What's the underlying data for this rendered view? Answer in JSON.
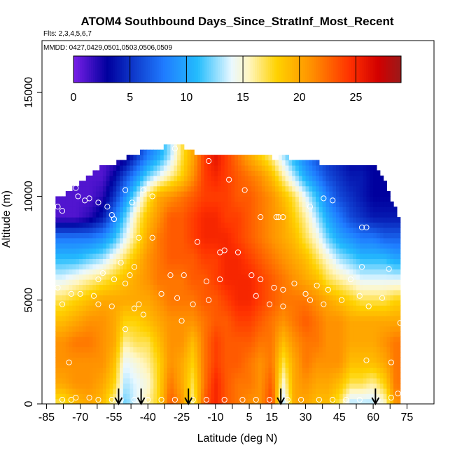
{
  "chart_data": {
    "type": "heatmap",
    "title": "ATOM4 Southbound Days_Since_StratInf_Most_Recent",
    "subtitle": "Flts: 2,3,4,5,6,7",
    "annotation": "MMDD: 0427,0429,0501,0503,0506,0509",
    "xlabel": "Latitude (deg N)",
    "ylabel": "Altitude (m)",
    "xlim": [
      -87,
      87
    ],
    "ylim": [
      0,
      17500
    ],
    "x_ticks": [
      -85,
      -70,
      -55,
      -40,
      -25,
      -10,
      5,
      15,
      30,
      45,
      60,
      75
    ],
    "x_tick_labels": [
      "-85",
      "-70",
      "-55",
      "-40",
      "-25",
      "-10",
      "5",
      "15",
      "30",
      "45",
      "60",
      "75"
    ],
    "y_ticks": [
      0,
      5000,
      10000,
      15000
    ],
    "y_tick_labels": [
      "0",
      "5000",
      "10000",
      "15000"
    ],
    "colorbar": {
      "range": [
        0,
        29
      ],
      "ticks": [
        0,
        5,
        10,
        15,
        20,
        25
      ],
      "tick_labels": [
        "0",
        "5",
        "10",
        "15",
        "20",
        "25"
      ],
      "colors": [
        "#7a1fe8",
        "#00009e",
        "#1f7bff",
        "#24bdfd",
        "#eaf8ff",
        "#fff6c2",
        "#ffd200",
        "#ff9200",
        "#ff3000",
        "#d20000",
        "#9a1a1a"
      ],
      "color_stops": [
        0,
        3,
        8,
        11,
        14,
        15.5,
        18,
        21,
        24.5,
        27,
        29
      ]
    },
    "lat_columns": [
      -78,
      -72,
      -66,
      -60,
      -55,
      -50,
      -45,
      -40,
      -35,
      -30,
      -25,
      -20,
      -15,
      -10,
      -5,
      0,
      5,
      10,
      15,
      20,
      25,
      30,
      35,
      40,
      45,
      50,
      55,
      60,
      65,
      70
    ],
    "alt_levels": [
      0,
      1000,
      2000,
      3000,
      4000,
      5000,
      6000,
      7000,
      8000,
      9000,
      10000,
      11000,
      12000
    ],
    "column_top_altitude": [
      10000,
      10500,
      11000,
      11500,
      11500,
      11800,
      12000,
      12200,
      12200,
      12400,
      12300,
      12000,
      11800,
      12000,
      12000,
      12000,
      12000,
      11900,
      11700,
      11800,
      11600,
      11600,
      11500,
      11500,
      11500,
      11500,
      11300,
      11300,
      10500,
      9000
    ],
    "days_grid": [
      [
        17,
        19,
        20,
        19,
        16,
        12,
        14,
        16,
        18,
        23,
        21,
        16,
        23,
        25,
        23,
        22,
        21,
        21,
        24,
        13,
        20,
        20,
        19,
        19,
        17,
        13,
        13,
        13,
        15,
        21
      ],
      [
        20,
        21,
        21,
        20,
        18,
        13,
        14,
        15,
        18,
        22,
        20,
        17,
        22,
        25,
        23,
        22,
        22,
        21,
        23,
        15,
        20,
        21,
        20,
        20,
        19,
        17,
        17,
        16,
        18,
        22
      ],
      [
        21,
        21,
        21,
        21,
        19,
        14,
        15,
        16,
        18,
        21,
        20,
        18,
        22,
        24,
        23,
        23,
        22,
        21,
        22,
        17,
        20,
        22,
        21,
        21,
        21,
        19,
        19,
        19,
        20,
        22
      ],
      [
        21,
        22,
        22,
        21,
        20,
        16,
        17,
        17,
        19,
        21,
        21,
        19,
        22,
        24,
        23,
        23,
        23,
        22,
        22,
        19,
        21,
        22,
        22,
        21,
        21,
        20,
        20,
        20,
        21,
        22
      ],
      [
        19,
        20,
        21,
        21,
        20,
        18,
        18,
        19,
        20,
        21,
        21,
        21,
        22,
        23,
        23,
        24,
        24,
        23,
        22,
        21,
        22,
        23,
        22,
        21,
        21,
        20,
        20,
        20,
        20,
        20
      ],
      [
        17,
        18,
        19,
        20,
        20,
        20,
        20,
        20,
        21,
        22,
        22,
        22,
        23,
        23,
        24,
        25,
        25,
        24,
        23,
        22,
        22,
        22,
        21,
        20,
        19,
        18,
        17,
        17,
        17,
        18
      ],
      [
        14,
        15,
        16,
        17,
        18,
        19,
        20,
        21,
        22,
        22,
        22,
        23,
        23,
        24,
        25,
        25,
        25,
        24,
        23,
        22,
        21,
        20,
        19,
        17,
        16,
        15,
        14,
        14,
        14,
        14
      ],
      [
        11,
        11,
        12,
        13,
        15,
        17,
        19,
        21,
        22,
        23,
        23,
        23,
        24,
        24,
        25,
        25,
        24,
        23,
        22,
        21,
        20,
        19,
        17,
        15,
        13,
        12,
        11,
        11,
        11,
        10
      ],
      [
        8,
        8,
        8,
        9,
        11,
        14,
        17,
        20,
        22,
        23,
        23,
        24,
        25,
        25,
        25,
        24,
        23,
        22,
        21,
        20,
        19,
        17,
        15,
        12,
        10,
        9,
        8,
        8,
        7,
        7
      ],
      [
        1,
        1,
        2,
        4,
        8,
        12,
        16,
        19,
        21,
        23,
        23,
        24,
        25,
        25,
        24,
        24,
        23,
        22,
        21,
        20,
        18,
        16,
        13,
        10,
        8,
        6,
        5,
        4,
        4,
        4
      ],
      [
        1,
        1,
        1,
        2,
        5,
        9,
        13,
        17,
        20,
        21,
        22,
        23,
        24,
        24,
        24,
        23,
        23,
        22,
        21,
        19,
        17,
        14,
        11,
        8,
        6,
        5,
        4,
        3,
        3,
        3
      ],
      [
        1,
        1,
        1,
        1,
        3,
        6,
        9,
        12,
        14,
        16,
        18,
        21,
        24,
        25,
        24,
        23,
        22,
        21,
        19,
        16,
        13,
        10,
        8,
        6,
        5,
        4,
        4,
        3,
        3,
        3
      ],
      [
        1,
        1,
        1,
        1,
        1,
        2,
        5,
        8,
        10,
        13,
        17,
        20,
        24,
        26,
        24,
        22,
        20,
        18,
        16,
        13,
        10,
        8,
        6,
        5,
        4,
        3,
        3,
        3,
        3,
        3
      ]
    ],
    "points": [
      {
        "lat": -82,
        "alt": 9500
      },
      {
        "lat": -80,
        "alt": 9500
      },
      {
        "lat": -78,
        "alt": 9300
      },
      {
        "lat": -72,
        "alt": 10400
      },
      {
        "lat": -71,
        "alt": 10000
      },
      {
        "lat": -68,
        "alt": 9800
      },
      {
        "lat": -66,
        "alt": 9900
      },
      {
        "lat": -62,
        "alt": 9700
      },
      {
        "lat": -58,
        "alt": 9500
      },
      {
        "lat": -56,
        "alt": 9100
      },
      {
        "lat": -55,
        "alt": 8900
      },
      {
        "lat": -50,
        "alt": 10300
      },
      {
        "lat": -47,
        "alt": 9700
      },
      {
        "lat": -42,
        "alt": 10300
      },
      {
        "lat": -38,
        "alt": 10000
      },
      {
        "lat": -28,
        "alt": 12300
      },
      {
        "lat": -13,
        "alt": 11700
      },
      {
        "lat": -4,
        "alt": 10800
      },
      {
        "lat": 3,
        "alt": 10300
      },
      {
        "lat": 17,
        "alt": 9000
      },
      {
        "lat": 18,
        "alt": 9000
      },
      {
        "lat": 20,
        "alt": 9000
      },
      {
        "lat": 10,
        "alt": 9000
      },
      {
        "lat": 32,
        "alt": 9500
      },
      {
        "lat": 38,
        "alt": 9900
      },
      {
        "lat": 42,
        "alt": 9800
      },
      {
        "lat": 55,
        "alt": 8500
      },
      {
        "lat": 57,
        "alt": 8500
      },
      {
        "lat": -44,
        "alt": 8000
      },
      {
        "lat": -38,
        "alt": 8000
      },
      {
        "lat": -18,
        "alt": 7800
      },
      {
        "lat": -8,
        "alt": 7300
      },
      {
        "lat": -6,
        "alt": 7400
      },
      {
        "lat": 0,
        "alt": 7300
      },
      {
        "lat": -52,
        "alt": 6800
      },
      {
        "lat": -46,
        "alt": 6600
      },
      {
        "lat": -48,
        "alt": 6200
      },
      {
        "lat": -60,
        "alt": 6300
      },
      {
        "lat": -62,
        "alt": 6000
      },
      {
        "lat": -55,
        "alt": 6000
      },
      {
        "lat": -50,
        "alt": 5800
      },
      {
        "lat": -30,
        "alt": 6200
      },
      {
        "lat": -24,
        "alt": 6200
      },
      {
        "lat": -14,
        "alt": 5900
      },
      {
        "lat": -8,
        "alt": 6000
      },
      {
        "lat": 6,
        "alt": 6200
      },
      {
        "lat": 10,
        "alt": 6000
      },
      {
        "lat": 16,
        "alt": 5600
      },
      {
        "lat": 20,
        "alt": 5500
      },
      {
        "lat": 25,
        "alt": 5800
      },
      {
        "lat": 35,
        "alt": 5700
      },
      {
        "lat": 40,
        "alt": 5500
      },
      {
        "lat": 50,
        "alt": 6000
      },
      {
        "lat": 55,
        "alt": 6600
      },
      {
        "lat": 67,
        "alt": 6500
      },
      {
        "lat": -80,
        "alt": 5600
      },
      {
        "lat": -74,
        "alt": 5300
      },
      {
        "lat": -70,
        "alt": 5300
      },
      {
        "lat": -64,
        "alt": 5200
      },
      {
        "lat": -62,
        "alt": 4800
      },
      {
        "lat": -56,
        "alt": 4700
      },
      {
        "lat": -46,
        "alt": 4600
      },
      {
        "lat": -44,
        "alt": 4800
      },
      {
        "lat": -34,
        "alt": 5300
      },
      {
        "lat": -27,
        "alt": 5100
      },
      {
        "lat": -20,
        "alt": 4800
      },
      {
        "lat": -13,
        "alt": 5000
      },
      {
        "lat": 8,
        "alt": 5200
      },
      {
        "lat": 14,
        "alt": 4800
      },
      {
        "lat": 20,
        "alt": 4700
      },
      {
        "lat": 30,
        "alt": 5300
      },
      {
        "lat": 32,
        "alt": 5000
      },
      {
        "lat": 38,
        "alt": 4800
      },
      {
        "lat": 46,
        "alt": 5000
      },
      {
        "lat": 54,
        "alt": 5200
      },
      {
        "lat": 58,
        "alt": 4700
      },
      {
        "lat": 64,
        "alt": 5100
      },
      {
        "lat": -78,
        "alt": 4800
      },
      {
        "lat": -42,
        "alt": 4300
      },
      {
        "lat": -25,
        "alt": 4000
      },
      {
        "lat": 72,
        "alt": 3900
      },
      {
        "lat": -50,
        "alt": 3600
      },
      {
        "lat": 68,
        "alt": 2000
      },
      {
        "lat": 57,
        "alt": 2100
      },
      {
        "lat": -75,
        "alt": 2000
      },
      {
        "lat": -78,
        "alt": 200
      },
      {
        "lat": -74,
        "alt": 200
      },
      {
        "lat": -72,
        "alt": 300
      },
      {
        "lat": -66,
        "alt": 300
      },
      {
        "lat": -62,
        "alt": 200
      },
      {
        "lat": -56,
        "alt": 200
      },
      {
        "lat": -52,
        "alt": 200
      },
      {
        "lat": -46,
        "alt": 200
      },
      {
        "lat": -40,
        "alt": 200
      },
      {
        "lat": -34,
        "alt": 200
      },
      {
        "lat": -28,
        "alt": 200
      },
      {
        "lat": -20,
        "alt": 200
      },
      {
        "lat": -14,
        "alt": 200
      },
      {
        "lat": -6,
        "alt": 200
      },
      {
        "lat": 2,
        "alt": 200
      },
      {
        "lat": 8,
        "alt": 200
      },
      {
        "lat": 14,
        "alt": 200
      },
      {
        "lat": 22,
        "alt": 200
      },
      {
        "lat": 28,
        "alt": 200
      },
      {
        "lat": 36,
        "alt": 200
      },
      {
        "lat": 42,
        "alt": 200
      },
      {
        "lat": 48,
        "alt": 200
      },
      {
        "lat": 54,
        "alt": 200
      },
      {
        "lat": 62,
        "alt": 200
      },
      {
        "lat": 68,
        "alt": 300
      },
      {
        "lat": 71,
        "alt": 500
      }
    ],
    "flight_markers_lat": [
      -53,
      -43,
      -22,
      19,
      61
    ],
    "grid": false
  }
}
